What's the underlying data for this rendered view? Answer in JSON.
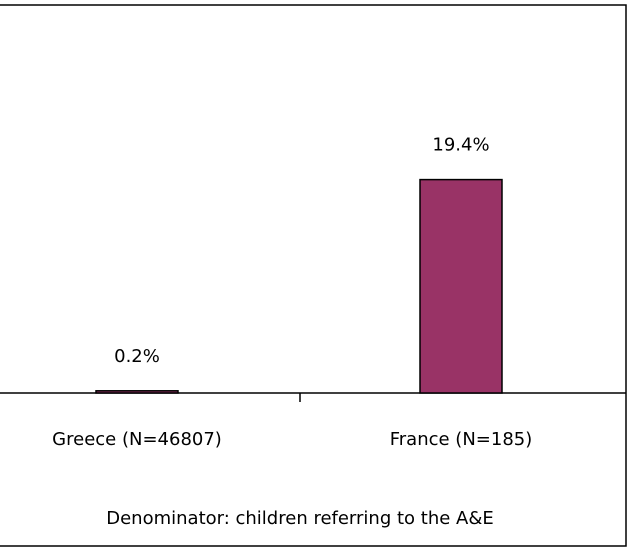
{
  "chart_data": {
    "type": "bar",
    "x_label": "Denominator: children referring to the A&E",
    "categories": [
      "Greece (N=46807)",
      "France (N=185)"
    ],
    "values": [
      0.2,
      19.4
    ],
    "value_labels": [
      "0.2%",
      "19.4%"
    ],
    "color": "#993366"
  }
}
